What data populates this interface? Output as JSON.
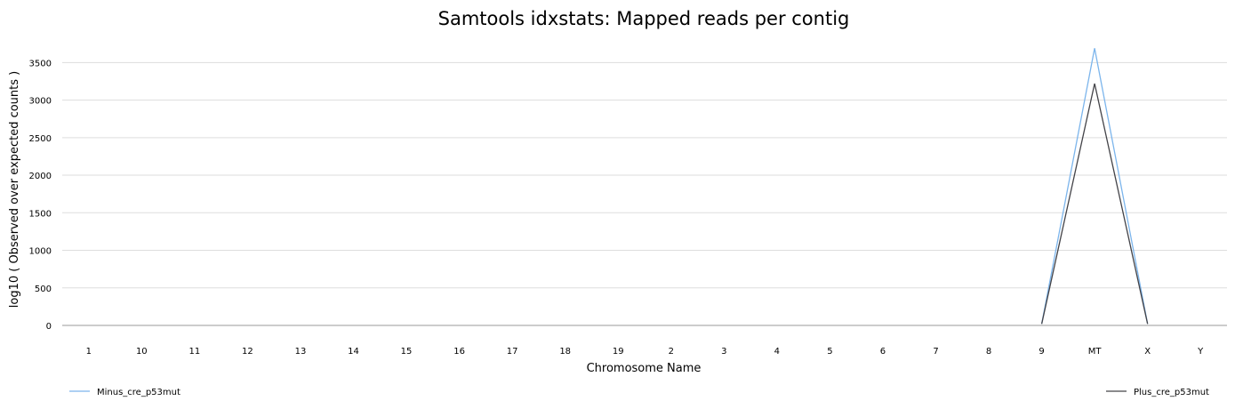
{
  "chart_data": {
    "type": "line",
    "title": "Samtools idxstats: Mapped reads per contig",
    "xlabel": "Chromosome Name",
    "ylabel": "log10 ( Observed over expected counts )",
    "categories": [
      "1",
      "10",
      "11",
      "12",
      "13",
      "14",
      "15",
      "16",
      "17",
      "18",
      "19",
      "2",
      "3",
      "4",
      "5",
      "6",
      "7",
      "8",
      "9",
      "MT",
      "X",
      "Y"
    ],
    "y_ticks": [
      0,
      500,
      1000,
      1500,
      2000,
      2500,
      3000,
      3500
    ],
    "ylim": [
      0,
      3800
    ],
    "grid": true,
    "legend_placement": "bottom",
    "series": [
      {
        "name": "Minus_cre_p53mut",
        "color": "#7cb5ec",
        "values": [
          null,
          null,
          null,
          null,
          null,
          null,
          null,
          null,
          null,
          null,
          null,
          null,
          null,
          null,
          null,
          null,
          null,
          null,
          20,
          3690,
          20,
          null
        ]
      },
      {
        "name": "Plus_cre_p53mut",
        "color": "#434348",
        "values": [
          null,
          null,
          null,
          null,
          null,
          null,
          null,
          null,
          null,
          null,
          null,
          null,
          null,
          null,
          null,
          null,
          null,
          null,
          20,
          3220,
          20,
          null
        ]
      }
    ]
  }
}
